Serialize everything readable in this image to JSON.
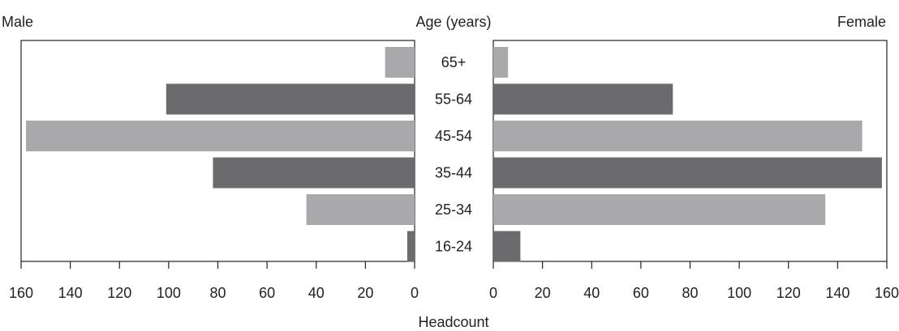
{
  "chart_data": {
    "type": "bar",
    "orientation": "horizontal-population-pyramid",
    "center_label": "Age (years)",
    "xlabel": "Headcount",
    "categories": [
      "65+",
      "55-64",
      "45-54",
      "35-44",
      "25-34",
      "16-24"
    ],
    "xlim": [
      0,
      160
    ],
    "ticks": [
      0,
      20,
      40,
      60,
      80,
      100,
      120,
      140,
      160
    ],
    "grid": false,
    "series": [
      {
        "name": "Male",
        "side": "left",
        "values": [
          12,
          101,
          158,
          82,
          44,
          3
        ]
      },
      {
        "name": "Female",
        "side": "right",
        "values": [
          6,
          73,
          150,
          158,
          135,
          11
        ]
      }
    ],
    "colors": {
      "dark": "#6b6b6e",
      "light": "#a9a9ab",
      "axis": "#222222"
    },
    "bar_shades": [
      "light",
      "dark",
      "light",
      "dark",
      "light",
      "dark"
    ]
  }
}
